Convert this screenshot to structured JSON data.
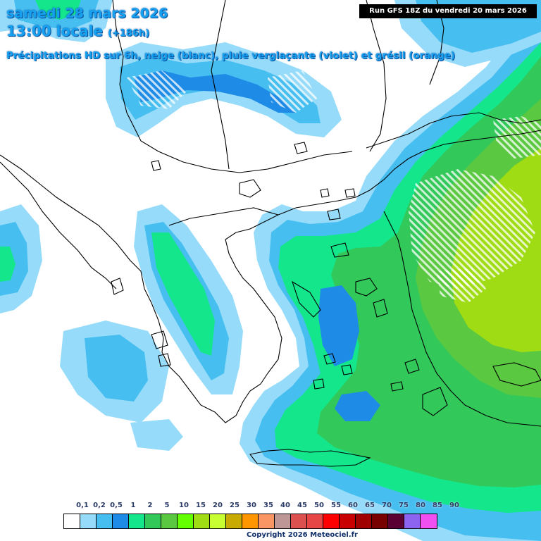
{
  "header": {
    "date": "samedi 28 mars 2026",
    "time": "13:00 locale",
    "lead": "(+186h)",
    "subtitle": "Précipitations HD sur 6h, neige (blanc), pluie verglaçante (violet) et grésil (orange)",
    "run": "Run GFS 18Z du vendredi 20 mars 2026"
  },
  "legend": {
    "labels": [
      "0,1",
      "0,2",
      "0,5",
      "1",
      "2",
      "5",
      "10",
      "15",
      "20",
      "25",
      "30",
      "35",
      "40",
      "45",
      "50",
      "55",
      "60",
      "65",
      "70",
      "75",
      "80",
      "85",
      "90"
    ],
    "colors": [
      "#ffffff",
      "#96dcfa",
      "#46bef0",
      "#1e8ce6",
      "#14e68c",
      "#32c85a",
      "#5ac841",
      "#64ff00",
      "#a0dc14",
      "#c8ff32",
      "#c8aa00",
      "#ff9600",
      "#fa9664",
      "#be9696",
      "#dc5050",
      "#e64646",
      "#ff0000",
      "#c80000",
      "#a00000",
      "#780000",
      "#5a0032",
      "#8c64f0",
      "#f050f0"
    ]
  },
  "map": {
    "colors": {
      "very_light": "#96dcfa",
      "light": "#46bef0",
      "medium": "#1e8ce6",
      "green_light": "#14e68c",
      "green": "#32c85a",
      "green_mid": "#5ac841",
      "yellow_green": "#a0dc14",
      "coast": "#000000"
    }
  },
  "footer": {
    "copyright": "Copyright 2026 Meteociel.fr"
  }
}
